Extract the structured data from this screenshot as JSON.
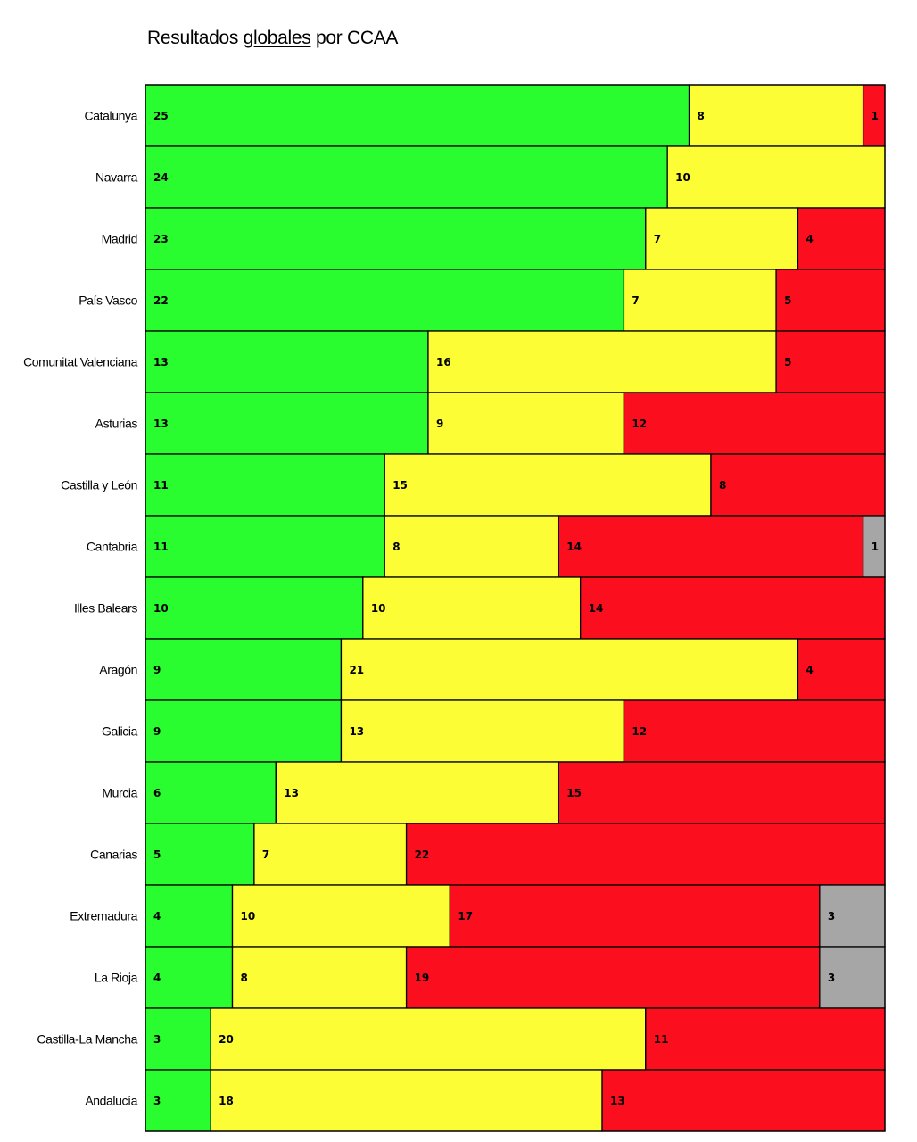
{
  "title": {
    "before": "Resultados ",
    "underlined": "globales",
    "after": " por CCAA"
  },
  "colors": {
    "green": "#2afd2f",
    "yellow": "#fdfd36",
    "red": "#fb0f1f",
    "grey": "#a6a6a6",
    "border": "#000000"
  },
  "chart_data": {
    "type": "bar",
    "orientation": "horizontal",
    "stacked": true,
    "title": "Resultados globales por CCAA",
    "categories": [
      "Catalunya",
      "Navarra",
      "Madrid",
      "País Vasco",
      "Comunitat Valenciana",
      "Asturias",
      "Castilla y León",
      "Cantabria",
      "Illes Balears",
      "Aragón",
      "Galicia",
      "Murcia",
      "Canarias",
      "Extremadura",
      "La Rioja",
      "Castilla-La Mancha",
      "Andalucía"
    ],
    "series": [
      {
        "color": "#2afd2f",
        "values": [
          25,
          24,
          23,
          22,
          13,
          13,
          11,
          11,
          10,
          9,
          9,
          6,
          5,
          4,
          4,
          3,
          3
        ]
      },
      {
        "color": "#fdfd36",
        "values": [
          8,
          10,
          7,
          7,
          16,
          9,
          15,
          8,
          10,
          21,
          13,
          13,
          7,
          10,
          8,
          20,
          18
        ]
      },
      {
        "color": "#fb0f1f",
        "values": [
          1,
          0,
          4,
          5,
          5,
          12,
          8,
          14,
          14,
          4,
          12,
          15,
          22,
          17,
          19,
          11,
          13
        ]
      },
      {
        "color": "#a6a6a6",
        "values": [
          0,
          0,
          0,
          0,
          0,
          0,
          0,
          1,
          0,
          0,
          0,
          0,
          0,
          3,
          3,
          0,
          0
        ]
      }
    ],
    "xlim": [
      0,
      34
    ],
    "grid": false,
    "legend": "none"
  }
}
